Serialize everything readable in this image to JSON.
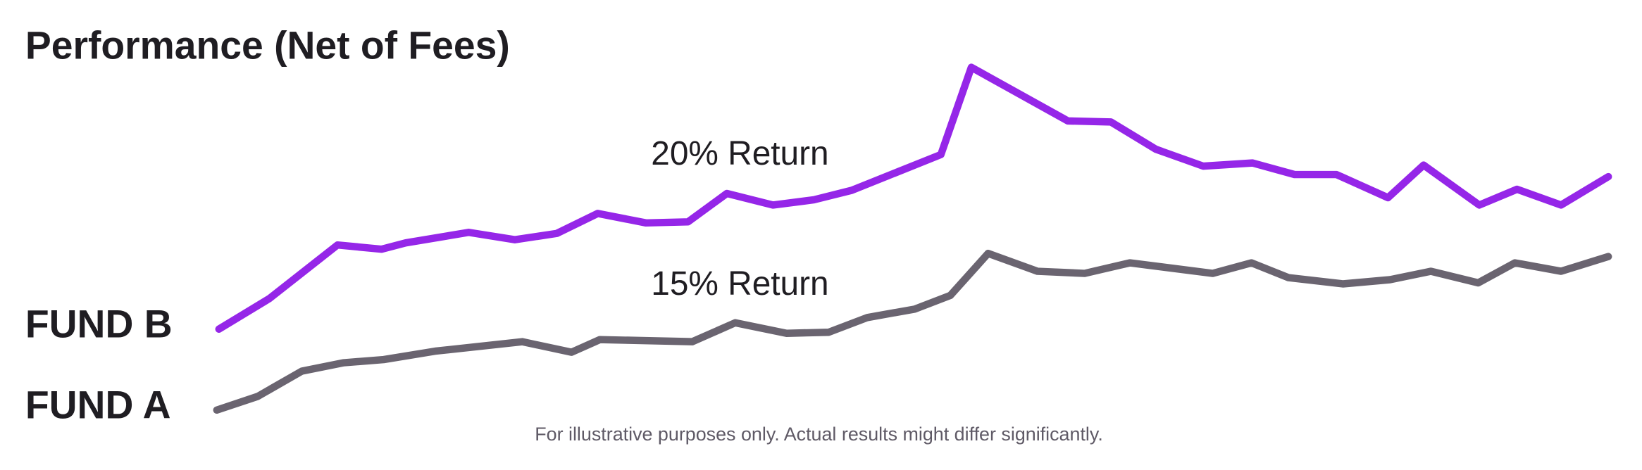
{
  "chart_data": {
    "type": "line",
    "title": "Performance (Net of Fees)",
    "footnote": "For illustrative purposes only. Actual results might differ significantly.",
    "annotations": [
      "20% Return",
      "15% Return"
    ],
    "xlim": [
      200,
      1530
    ],
    "ylim": [
      0,
      340
    ],
    "series": [
      {
        "name": "FUND B",
        "color": "#9526e8",
        "x": [
          205,
          253,
          318,
          360,
          383,
          443,
          487,
          527,
          566,
          612,
          652,
          689,
          733,
          772,
          808,
          893,
          922,
          1014,
          1055,
          1098,
          1143,
          1190,
          1230,
          1270,
          1319,
          1353,
          1406,
          1442,
          1484,
          1529
        ],
        "values": [
          89,
          118,
          169,
          165,
          171,
          181,
          174,
          180,
          199,
          190,
          191,
          218,
          207,
          212,
          221,
          255,
          338,
          287,
          286,
          260,
          244,
          247,
          236,
          236,
          214,
          245,
          207,
          222,
          207,
          234
        ]
      },
      {
        "name": "FUND A",
        "color": "#6a6470",
        "x": [
          203,
          242,
          284,
          324,
          362,
          411,
          494,
          541,
          568,
          656,
          697,
          746,
          786,
          823,
          868,
          902,
          938,
          985,
          1030,
          1073,
          1152,
          1189,
          1224,
          1276,
          1321,
          1360,
          1405,
          1440,
          1484,
          1529
        ],
        "values": [
          12,
          25,
          49,
          57,
          60,
          68,
          77,
          67,
          79,
          77,
          95,
          85,
          86,
          100,
          108,
          121,
          161,
          144,
          142,
          152,
          142,
          152,
          138,
          132,
          136,
          144,
          133,
          152,
          144,
          158
        ]
      }
    ]
  }
}
